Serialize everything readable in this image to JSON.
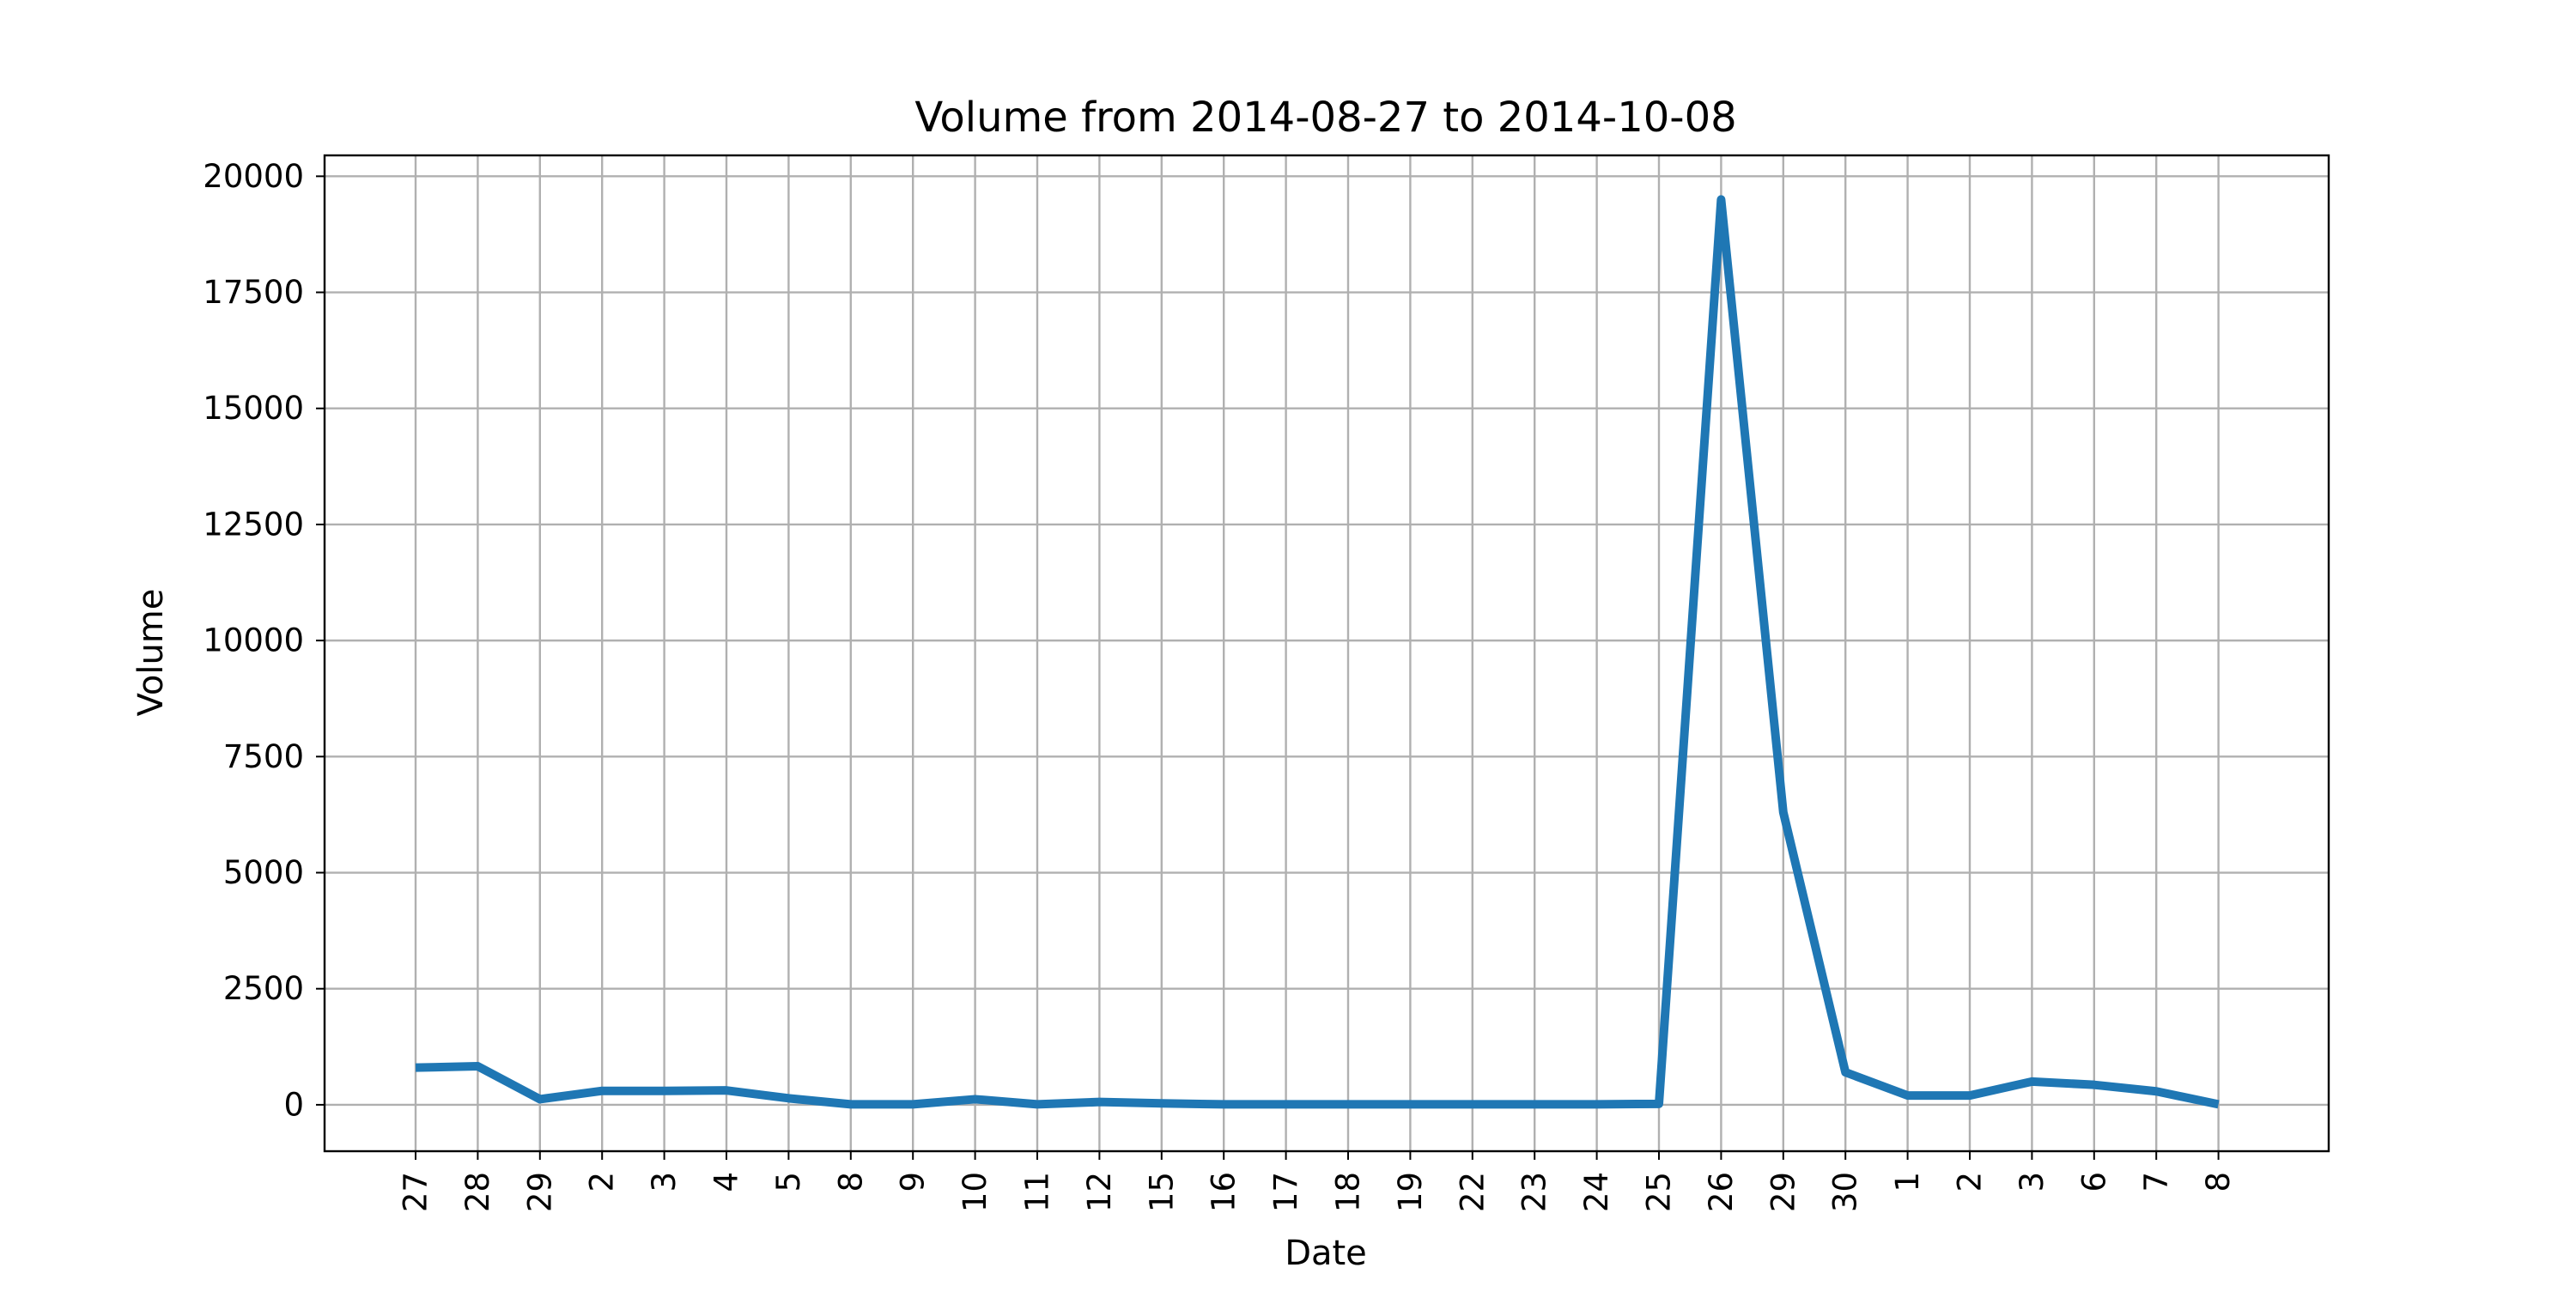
{
  "chart_data": {
    "type": "line",
    "title": "Volume from 2014-08-27 to 2014-10-08",
    "xlabel": "Date",
    "ylabel": "Volume",
    "categories": [
      "27",
      "28",
      "29",
      "2",
      "3",
      "4",
      "5",
      "8",
      "9",
      "10",
      "11",
      "12",
      "15",
      "16",
      "17",
      "18",
      "19",
      "22",
      "23",
      "24",
      "25",
      "26",
      "29",
      "30",
      "1",
      "2",
      "3",
      "6",
      "7",
      "8"
    ],
    "x": [
      "2014-08-27",
      "2014-08-28",
      "2014-08-29",
      "2014-09-02",
      "2014-09-03",
      "2014-09-04",
      "2014-09-05",
      "2014-09-08",
      "2014-09-09",
      "2014-09-10",
      "2014-09-11",
      "2014-09-12",
      "2014-09-15",
      "2014-09-16",
      "2014-09-17",
      "2014-09-18",
      "2014-09-19",
      "2014-09-22",
      "2014-09-23",
      "2014-09-24",
      "2014-09-25",
      "2014-09-26",
      "2014-09-29",
      "2014-09-30",
      "2014-10-01",
      "2014-10-02",
      "2014-10-03",
      "2014-10-06",
      "2014-10-07",
      "2014-10-08"
    ],
    "series": [
      {
        "values": [
          800,
          830,
          120,
          300,
          300,
          310,
          140,
          10,
          10,
          120,
          10,
          60,
          30,
          10,
          10,
          10,
          10,
          10,
          10,
          10,
          20,
          19500,
          6300,
          700,
          200,
          200,
          500,
          430,
          290,
          10
        ],
        "color": "#1f77b4"
      }
    ],
    "yticks": [
      0,
      2500,
      5000,
      7500,
      10000,
      12500,
      15000,
      17500,
      20000
    ],
    "ylim": [
      -1000,
      20450
    ],
    "grid": true
  }
}
